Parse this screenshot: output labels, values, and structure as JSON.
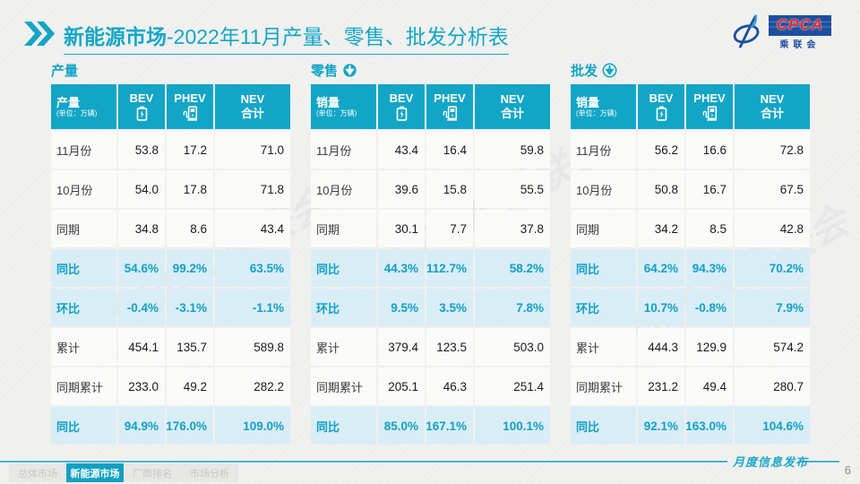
{
  "title": {
    "bold": "新能源市场",
    "rest": "-2022年11月产量、零售、批发分析表"
  },
  "logo": {
    "box_text": "CPCA",
    "cn_text": "乘联会"
  },
  "colors": {
    "accent": "#12a5c6",
    "highlight_bg": "#d9edf6",
    "highlight_text": "#11a0c6",
    "logo_blue": "#1d4f9e",
    "logo_red": "#e8262d"
  },
  "watermark_text": "CPCA 乘联会",
  "tables": [
    {
      "section_title": "产量",
      "arrow": "none",
      "corner_label": "产量",
      "corner_unit": "(单位：万辆)",
      "columns": {
        "bev": "BEV",
        "phev": "PHEV",
        "nev_line1": "NEV",
        "nev_line2": "合计"
      },
      "rows": [
        {
          "label": "11月份",
          "values": [
            "53.8",
            "17.2",
            "71.0"
          ],
          "type": "normal"
        },
        {
          "label": "10月份",
          "values": [
            "54.0",
            "17.8",
            "71.8"
          ],
          "type": "normal"
        },
        {
          "label": "同期",
          "values": [
            "34.8",
            "8.6",
            "43.4"
          ],
          "type": "normal"
        },
        {
          "label": "同比",
          "values": [
            "54.6%",
            "99.2%",
            "63.5%"
          ],
          "type": "highlight"
        },
        {
          "label": "环比",
          "values": [
            "-0.4%",
            "-3.1%",
            "-1.1%"
          ],
          "type": "highlight"
        },
        {
          "label": "累计",
          "values": [
            "454.1",
            "135.7",
            "589.8"
          ],
          "type": "normal"
        },
        {
          "label": "同期累计",
          "values": [
            "233.0",
            "49.2",
            "282.2"
          ],
          "type": "normal"
        },
        {
          "label": "同比",
          "values": [
            "94.9%",
            "176.0%",
            "109.0%"
          ],
          "type": "highlight"
        }
      ]
    },
    {
      "section_title": "零售",
      "arrow": "filled",
      "corner_label": "销量",
      "corner_unit": "(单位：万辆)",
      "columns": {
        "bev": "BEV",
        "phev": "PHEV",
        "nev_line1": "NEV",
        "nev_line2": "合计"
      },
      "rows": [
        {
          "label": "11月份",
          "values": [
            "43.4",
            "16.4",
            "59.8"
          ],
          "type": "normal"
        },
        {
          "label": "10月份",
          "values": [
            "39.6",
            "15.8",
            "55.5"
          ],
          "type": "normal"
        },
        {
          "label": "同期",
          "values": [
            "30.1",
            "7.7",
            "37.8"
          ],
          "type": "normal"
        },
        {
          "label": "同比",
          "values": [
            "44.3%",
            "112.7%",
            "58.2%"
          ],
          "type": "highlight"
        },
        {
          "label": "环比",
          "values": [
            "9.5%",
            "3.5%",
            "7.8%"
          ],
          "type": "highlight"
        },
        {
          "label": "累计",
          "values": [
            "379.4",
            "123.5",
            "503.0"
          ],
          "type": "normal"
        },
        {
          "label": "同期累计",
          "values": [
            "205.1",
            "46.3",
            "251.4"
          ],
          "type": "normal"
        },
        {
          "label": "同比",
          "values": [
            "85.0%",
            "167.1%",
            "100.1%"
          ],
          "type": "highlight"
        }
      ]
    },
    {
      "section_title": "批发",
      "arrow": "outline",
      "corner_label": "销量",
      "corner_unit": "(单位：万辆)",
      "columns": {
        "bev": "BEV",
        "phev": "PHEV",
        "nev_line1": "NEV",
        "nev_line2": "合计"
      },
      "rows": [
        {
          "label": "11月份",
          "values": [
            "56.2",
            "16.6",
            "72.8"
          ],
          "type": "normal"
        },
        {
          "label": "10月份",
          "values": [
            "50.8",
            "16.7",
            "67.5"
          ],
          "type": "normal"
        },
        {
          "label": "同期",
          "values": [
            "34.2",
            "8.5",
            "42.8"
          ],
          "type": "normal"
        },
        {
          "label": "同比",
          "values": [
            "64.2%",
            "94.3%",
            "70.2%"
          ],
          "type": "highlight"
        },
        {
          "label": "环比",
          "values": [
            "10.7%",
            "-0.8%",
            "7.9%"
          ],
          "type": "highlight"
        },
        {
          "label": "累计",
          "values": [
            "444.3",
            "129.9",
            "574.2"
          ],
          "type": "normal"
        },
        {
          "label": "同期累计",
          "values": [
            "231.2",
            "49.4",
            "280.7"
          ],
          "type": "normal"
        },
        {
          "label": "同比",
          "values": [
            "92.1%",
            "163.0%",
            "104.6%"
          ],
          "type": "highlight"
        }
      ]
    }
  ],
  "footer": {
    "tabs": [
      {
        "label": "总体市场",
        "active": false
      },
      {
        "label": "新能源市场",
        "active": true
      },
      {
        "label": "厂商排名",
        "active": false
      },
      {
        "label": "市场分析",
        "active": false
      }
    ],
    "ribbon_label": "月度信息发布",
    "page_number": "6"
  }
}
